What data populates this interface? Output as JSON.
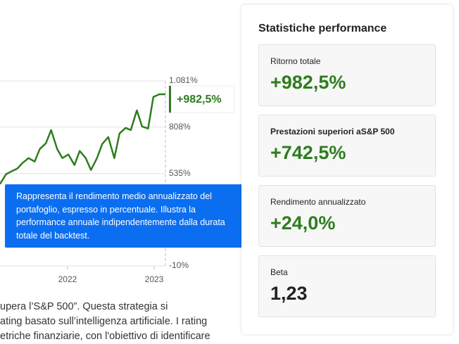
{
  "chart": {
    "type": "line",
    "color": "#2e7d1e",
    "x": [
      2021.22,
      2021.29,
      2021.35,
      2021.42,
      2021.48,
      2021.55,
      2021.62,
      2021.68,
      2021.75,
      2021.81,
      2021.88,
      2021.94,
      2022.01,
      2022.08,
      2022.14,
      2022.21,
      2022.27,
      2022.34,
      2022.4,
      2022.47,
      2022.54,
      2022.6,
      2022.67,
      2022.73,
      2022.8,
      2022.86,
      2022.93,
      2022.99,
      2023.06,
      2023.13
    ],
    "values": [
      473,
      531,
      547,
      564,
      597,
      626,
      605,
      680,
      713,
      791,
      680,
      626,
      647,
      585,
      668,
      626,
      556,
      626,
      709,
      750,
      626,
      771,
      804,
      791,
      907,
      812,
      800,
      986,
      1002,
      1002
    ],
    "xlim": [
      2021.22,
      2023.13
    ],
    "xticks": [
      2022,
      2023
    ],
    "ylim": [
      -10,
      1081
    ],
    "yticks": [
      {
        "value": 1081,
        "label": "1.081%"
      },
      {
        "value": 808,
        "label": "808%"
      },
      {
        "value": 535,
        "label": "535%"
      },
      {
        "value": -10,
        "label": "-10%"
      }
    ],
    "badge": "+982,5%"
  },
  "tooltip": "Rappresenta il rendimento medio annualizzato del portafoglio, espresso in percentuale. Illustra la performance annuale indipendentemente dalla durata totale del backtest.",
  "body_text": [
    "upera l’S&P 500”. Questa strategia si",
    "ating basato sull’intelligenza artificiale. I rating",
    "etriche finanziarie, con l'obiettivo di identificare"
  ],
  "panel": {
    "title": "Statistiche performance",
    "cards": [
      {
        "label": "Ritorno totale",
        "value": "+982,5%"
      },
      {
        "label": "Prestazioni superiori aS&P 500",
        "value": "+742,5%"
      },
      {
        "label": "Rendimento annualizzato",
        "value": "+24,0%"
      },
      {
        "label": "Beta",
        "value": "1,23"
      }
    ]
  }
}
